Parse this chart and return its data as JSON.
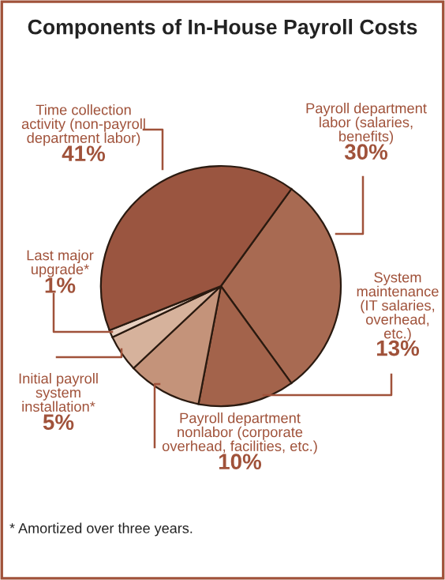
{
  "chart_data": {
    "type": "pie",
    "title": "Components of In-House Payroll Costs",
    "categories": [
      "Payroll department\nlabor (salaries,\nbenefits)",
      "System\nmaintenance\n(IT salaries,\noverhead,\netc.)",
      "Payroll department\nnonlabor (corporate\noverhead, facilities, etc.)",
      "Initial payroll\nsystem\ninstallation*",
      "Last major\nupgrade*",
      "Time collection\nactivity (non-payroll\ndepartment labor)"
    ],
    "values": [
      30,
      13,
      10,
      5,
      1,
      41
    ],
    "value_labels": [
      "30%",
      "13%",
      "10%",
      "5%",
      "1%",
      "41%"
    ],
    "colors": [
      "#a86a52",
      "#a3634b",
      "#c4937a",
      "#d6b29c",
      "#e8d0c0",
      "#9a5540"
    ],
    "annotations": [
      "* Amortized over three years."
    ]
  }
}
